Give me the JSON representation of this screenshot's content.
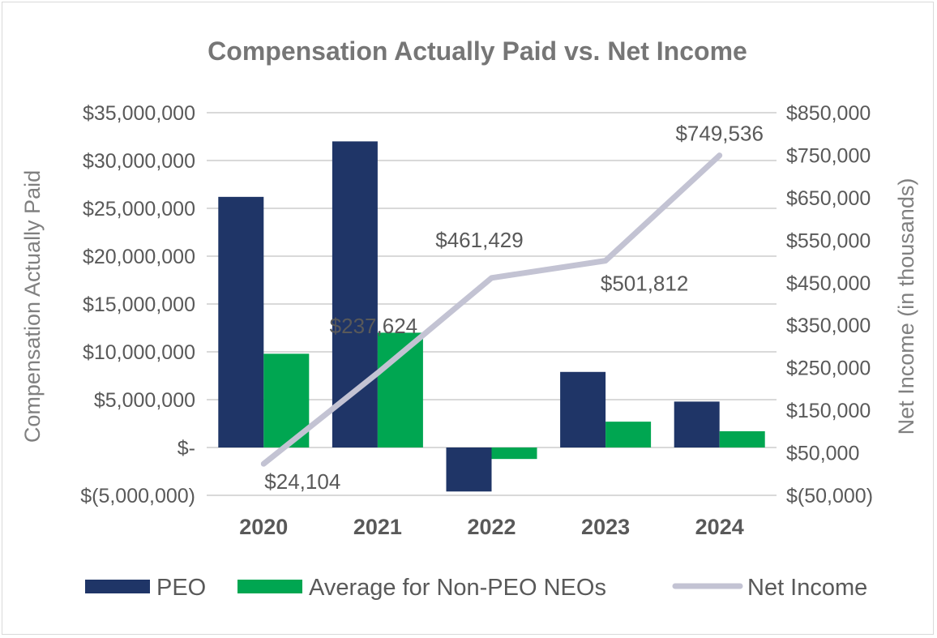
{
  "chart_data": {
    "type": "bar",
    "title": "Compensation Actually Paid vs. Net Income",
    "categories": [
      "2020",
      "2021",
      "2022",
      "2023",
      "2024"
    ],
    "ylabel": "Compensation Actually Paid",
    "y2label": "Net Income (in thousands)",
    "ylim": [
      -5000000,
      35000000
    ],
    "y2lim": [
      -50000,
      850000
    ],
    "yticks": [
      "$35,000,000",
      "$30,000,000",
      "$25,000,000",
      "$20,000,000",
      "$15,000,000",
      "$10,000,000",
      "$5,000,000",
      "$-",
      "$(5,000,000)"
    ],
    "y2ticks": [
      "$850,000",
      "$750,000",
      "$650,000",
      "$550,000",
      "$450,000",
      "$350,000",
      "$250,000",
      "$150,000",
      "$50,000",
      "$(50,000)"
    ],
    "series": [
      {
        "name": "PEO",
        "type": "bar",
        "axis": "left",
        "color": "#1f3567",
        "values": [
          26200000,
          32000000,
          -4600000,
          7900000,
          4800000
        ]
      },
      {
        "name": "Average for Non-PEO NEOs",
        "type": "bar",
        "axis": "left",
        "color": "#00a651",
        "values": [
          9800000,
          12000000,
          -1200000,
          2700000,
          1700000
        ]
      },
      {
        "name": "Net Income",
        "type": "line",
        "axis": "right",
        "color": "#c3c3d3",
        "values": [
          24104,
          237624,
          461429,
          501812,
          749536
        ],
        "labels": [
          "$24,104",
          "$237,624",
          "$461,429",
          "$501,812",
          "$749,536"
        ]
      }
    ],
    "legend_position": "bottom",
    "grid": true
  }
}
